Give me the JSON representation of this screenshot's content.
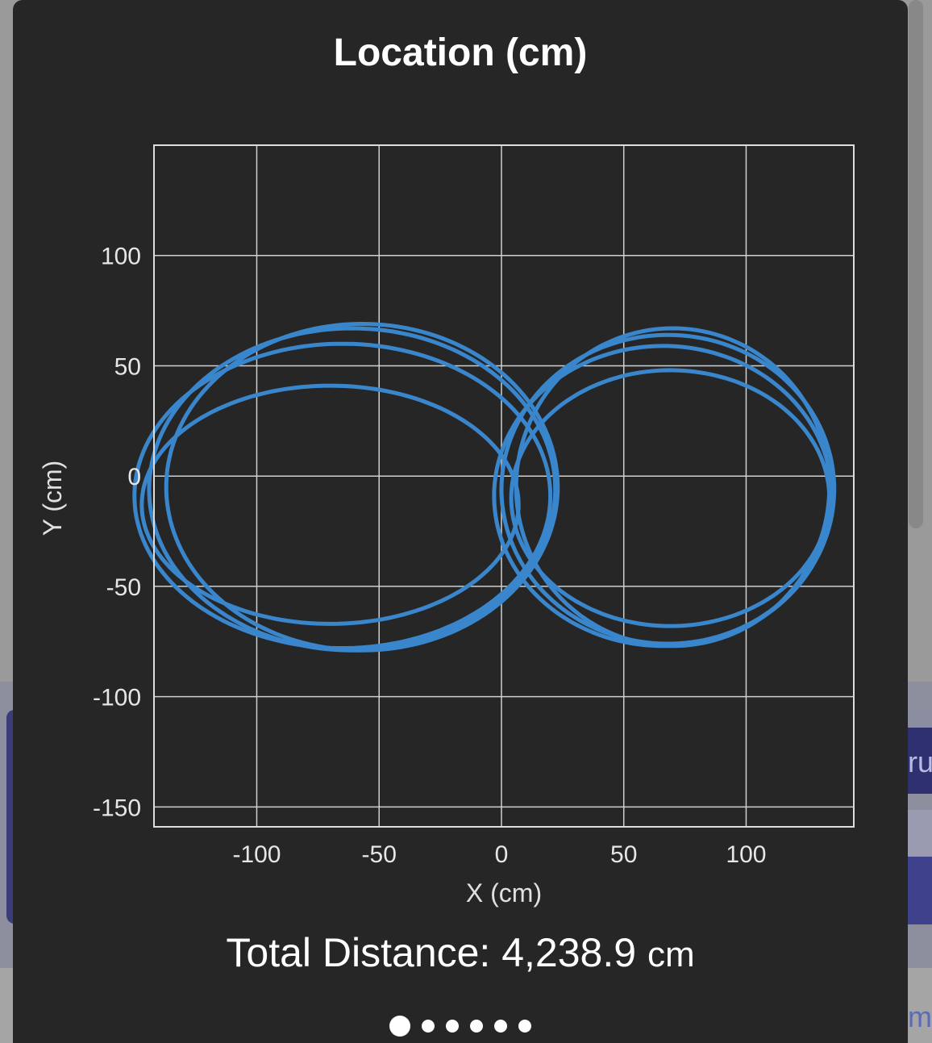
{
  "title": "Location (cm)",
  "total": {
    "label": "Total Distance: ",
    "value": "4,238.9",
    "unit": "cm"
  },
  "pager": {
    "count": 6,
    "active": 0
  },
  "background": {
    "right_text_a": "rue",
    "right_text_b": "mp"
  },
  "chart_data": {
    "type": "line",
    "title": "Location (cm)",
    "xlabel": "X (cm)",
    "ylabel": "Y (cm)",
    "xlim": [
      -142,
      144
    ],
    "ylim": [
      -159,
      150
    ],
    "xticks": [
      -100,
      -50,
      0,
      50,
      100
    ],
    "yticks": [
      100,
      50,
      0,
      -50,
      -100,
      -150
    ],
    "grid": true,
    "color": "#3a86cc",
    "loops": [
      {
        "cx": -57,
        "cy": -5,
        "rx": 80,
        "ry": 74,
        "a0": 2.6
      },
      {
        "cx": -61,
        "cy": -6,
        "rx": 83,
        "ry": 73,
        "a0": 2.9
      },
      {
        "cx": -65,
        "cy": -9,
        "rx": 85,
        "ry": 69,
        "a0": 3.2
      },
      {
        "cx": -70,
        "cy": -13,
        "rx": 77,
        "ry": 54,
        "a0": 3.5
      },
      {
        "cx": 70,
        "cy": -5,
        "rx": 64,
        "ry": 72,
        "a0": 0.0
      },
      {
        "cx": 68,
        "cy": -6,
        "rx": 68,
        "ry": 70,
        "a0": 0.3
      },
      {
        "cx": 66,
        "cy": -9,
        "rx": 69,
        "ry": 68,
        "a0": 0.6
      },
      {
        "cx": 69,
        "cy": -10,
        "rx": 65,
        "ry": 58,
        "a0": 0.9
      }
    ]
  }
}
